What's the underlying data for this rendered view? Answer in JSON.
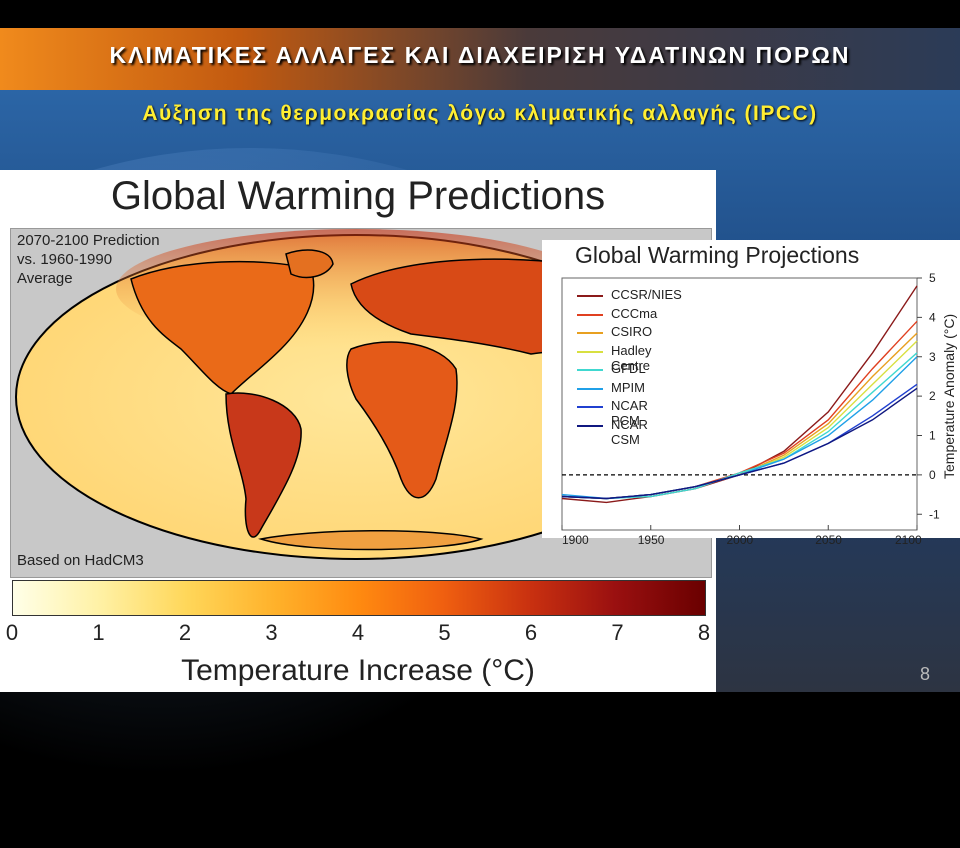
{
  "slide": {
    "title": "ΚΛΙΜΑΤΙΚΕΣ ΑΛΛΑΓΕΣ ΚΑΙ ΔΙΑΧΕΙΡΙΣΗ ΥΔΑΤΙΝΩΝ ΠΟΡΩΝ",
    "subtitle": "Αύξηση της θερμοκρασίας λόγω κλιματικής αλλαγής (IPCC)",
    "page_number": "8"
  },
  "map_figure": {
    "title": "Global Warming Predictions",
    "prediction_line1": "2070-2100 Prediction",
    "prediction_line2": "vs. 1960-1990",
    "prediction_line3": "Average",
    "based_on": "Based on HadCM3",
    "colorbar_ticks": [
      "0",
      "1",
      "2",
      "3",
      "4",
      "5",
      "6",
      "7",
      "8"
    ],
    "colorbar_label": "Temperature Increase (°C)"
  },
  "chart_data": {
    "type": "line",
    "title": "Global Warming Projections",
    "xlabel": "",
    "ylabel": "Temperature Anomaly (°C)",
    "x": [
      1900,
      1925,
      1950,
      1975,
      2000,
      2025,
      2050,
      2075,
      2100
    ],
    "xlim": [
      1900,
      2100
    ],
    "ylim": [
      -1.4,
      5
    ],
    "xticks": [
      "1900",
      "1950",
      "2000",
      "2050",
      "2100"
    ],
    "yticks": [
      "-1",
      "0",
      "1",
      "2",
      "3",
      "4",
      "5"
    ],
    "reference_line": 0,
    "legend_position": "top-left",
    "series": [
      {
        "name": "CCSR/NIES",
        "color": "#8b1a1a",
        "values": [
          -0.6,
          -0.7,
          -0.55,
          -0.35,
          0.0,
          0.6,
          1.6,
          3.1,
          4.8
        ]
      },
      {
        "name": "CCCma",
        "color": "#e04020",
        "values": [
          -0.55,
          -0.6,
          -0.5,
          -0.3,
          0.05,
          0.55,
          1.4,
          2.7,
          3.9
        ]
      },
      {
        "name": "CSIRO",
        "color": "#e8a020",
        "values": [
          -0.55,
          -0.6,
          -0.5,
          -0.3,
          0.0,
          0.5,
          1.3,
          2.5,
          3.6
        ]
      },
      {
        "name": "Hadley Centre",
        "color": "#d8e040",
        "values": [
          -0.55,
          -0.6,
          -0.5,
          -0.3,
          0.0,
          0.45,
          1.2,
          2.3,
          3.4
        ]
      },
      {
        "name": "GFDL",
        "color": "#40d8d0",
        "values": [
          -0.55,
          -0.6,
          -0.55,
          -0.35,
          0.05,
          0.4,
          1.1,
          2.1,
          3.1
        ]
      },
      {
        "name": "MPIM",
        "color": "#20a0e8",
        "values": [
          -0.5,
          -0.6,
          -0.5,
          -0.3,
          0.0,
          0.4,
          1.0,
          1.9,
          3.0
        ]
      },
      {
        "name": "NCAR PCM",
        "color": "#2040d0",
        "values": [
          -0.55,
          -0.6,
          -0.5,
          -0.3,
          0.0,
          0.3,
          0.8,
          1.5,
          2.3
        ]
      },
      {
        "name": "NCAR CSM",
        "color": "#101880",
        "values": [
          -0.55,
          -0.6,
          -0.5,
          -0.3,
          0.0,
          0.3,
          0.8,
          1.4,
          2.2
        ]
      }
    ]
  },
  "colors": {
    "title_band_start": "#f08a1c",
    "subtitle": "#ffee33"
  }
}
